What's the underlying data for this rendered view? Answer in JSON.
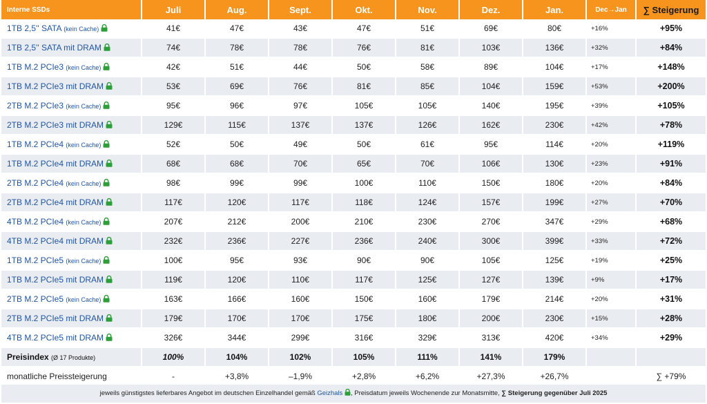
{
  "header": {
    "product_label": "Interne SSDs",
    "months": [
      "Juli",
      "Aug.",
      "Sept.",
      "Okt.",
      "Nov.",
      "Dez.",
      "Jan."
    ],
    "change_label": "Dec→Jan",
    "total_label": "∑ Steigerung"
  },
  "rows": [
    {
      "name": "1TB 2,5'' SATA",
      "note": "(kein Cache)",
      "prices": [
        "41€",
        "47€",
        "43€",
        "47€",
        "51€",
        "69€",
        "80€"
      ],
      "dec_jan": "+16%",
      "total": "+95%"
    },
    {
      "name": "1TB 2,5'' SATA mit DRAM",
      "note": "",
      "prices": [
        "74€",
        "78€",
        "78€",
        "76€",
        "81€",
        "103€",
        "136€"
      ],
      "dec_jan": "+32%",
      "total": "+84%"
    },
    {
      "name": "1TB M.2 PCIe3",
      "note": "(kein Cache)",
      "prices": [
        "42€",
        "51€",
        "44€",
        "50€",
        "58€",
        "89€",
        "104€"
      ],
      "dec_jan": "+17%",
      "total": "+148%"
    },
    {
      "name": "1TB M.2 PCIe3 mit DRAM",
      "note": "",
      "prices": [
        "53€",
        "69€",
        "76€",
        "81€",
        "85€",
        "104€",
        "159€"
      ],
      "dec_jan": "+53%",
      "total": "+200%"
    },
    {
      "name": "2TB M.2 PCIe3",
      "note": "(kein Cache)",
      "prices": [
        "95€",
        "96€",
        "97€",
        "105€",
        "105€",
        "140€",
        "195€"
      ],
      "dec_jan": "+39%",
      "total": "+105%"
    },
    {
      "name": "2TB M.2 PCIe3 mit DRAM",
      "note": "",
      "prices": [
        "129€",
        "115€",
        "137€",
        "137€",
        "126€",
        "162€",
        "230€"
      ],
      "dec_jan": "+42%",
      "total": "+78%"
    },
    {
      "name": "1TB M.2 PCIe4",
      "note": "(kein Cache)",
      "prices": [
        "52€",
        "50€",
        "49€",
        "50€",
        "61€",
        "95€",
        "114€"
      ],
      "dec_jan": "+20%",
      "total": "+119%"
    },
    {
      "name": "1TB M.2 PCIe4 mit DRAM",
      "note": "",
      "prices": [
        "68€",
        "68€",
        "70€",
        "65€",
        "70€",
        "106€",
        "130€"
      ],
      "dec_jan": "+23%",
      "total": "+91%"
    },
    {
      "name": "2TB M.2 PCIe4",
      "note": "(kein Cache)",
      "prices": [
        "98€",
        "99€",
        "99€",
        "100€",
        "110€",
        "150€",
        "180€"
      ],
      "dec_jan": "+20%",
      "total": "+84%"
    },
    {
      "name": "2TB M.2 PCIe4 mit DRAM",
      "note": "",
      "prices": [
        "117€",
        "120€",
        "117€",
        "118€",
        "124€",
        "157€",
        "199€"
      ],
      "dec_jan": "+27%",
      "total": "+70%"
    },
    {
      "name": "4TB M.2 PCIe4",
      "note": "(kein Cache)",
      "prices": [
        "207€",
        "212€",
        "200€",
        "210€",
        "230€",
        "270€",
        "347€"
      ],
      "dec_jan": "+29%",
      "total": "+68%"
    },
    {
      "name": "4TB M.2 PCIe4 mit DRAM",
      "note": "",
      "prices": [
        "232€",
        "236€",
        "227€",
        "236€",
        "240€",
        "300€",
        "399€"
      ],
      "dec_jan": "+33%",
      "total": "+72%"
    },
    {
      "name": "1TB M.2 PCIe5",
      "note": "(kein Cache)",
      "prices": [
        "100€",
        "95€",
        "93€",
        "90€",
        "90€",
        "105€",
        "125€"
      ],
      "dec_jan": "+19%",
      "total": "+25%"
    },
    {
      "name": "1TB M.2 PCIe5 mit DRAM",
      "note": "",
      "prices": [
        "119€",
        "120€",
        "110€",
        "117€",
        "125€",
        "127€",
        "139€"
      ],
      "dec_jan": "+9%",
      "total": "+17%"
    },
    {
      "name": "2TB M.2 PCIe5",
      "note": "(kein Cache)",
      "prices": [
        "163€",
        "166€",
        "160€",
        "150€",
        "160€",
        "179€",
        "214€"
      ],
      "dec_jan": "+20%",
      "total": "+31%"
    },
    {
      "name": "2TB M.2 PCIe5 mit DRAM",
      "note": "",
      "prices": [
        "179€",
        "170€",
        "170€",
        "175€",
        "180€",
        "200€",
        "230€"
      ],
      "dec_jan": "+15%",
      "total": "+28%"
    },
    {
      "name": "4TB M.2 PCIe5 mit DRAM",
      "note": "",
      "prices": [
        "326€",
        "344€",
        "299€",
        "316€",
        "329€",
        "313€",
        "420€"
      ],
      "dec_jan": "+34%",
      "total": "+29%"
    }
  ],
  "index_row": {
    "label": "Preisindex",
    "note": "(Ø 17 Produkte)",
    "values": [
      "100%",
      "104%",
      "102%",
      "105%",
      "111%",
      "141%",
      "179%"
    ],
    "dec_jan": "",
    "total": ""
  },
  "monthly_row": {
    "label": "monatliche Preissteigerung",
    "values": [
      "-",
      "+3,8%",
      "–1,9%",
      "+2,8%",
      "+6,2%",
      "+27,3%",
      "+26,7%"
    ],
    "dec_jan": "",
    "total": "∑ +79%"
  },
  "footer": {
    "text_before": "jeweils günstigstes lieferbares Angebot im deutschen Einzelhandel gemäß",
    "source": "Geizhals",
    "text_middle": ", Preisdatum jeweils Wochenende zur Monatsmitte,",
    "text_bold": "∑ Steigerung gegenüber Juli 2025"
  },
  "colors": {
    "header_bg": "#f7941d",
    "link_blue": "#1f55a8",
    "lock_green": "#2e9e3a",
    "stripe": "#e9ecf1"
  },
  "icons": {
    "product_link": "lock-icon"
  }
}
